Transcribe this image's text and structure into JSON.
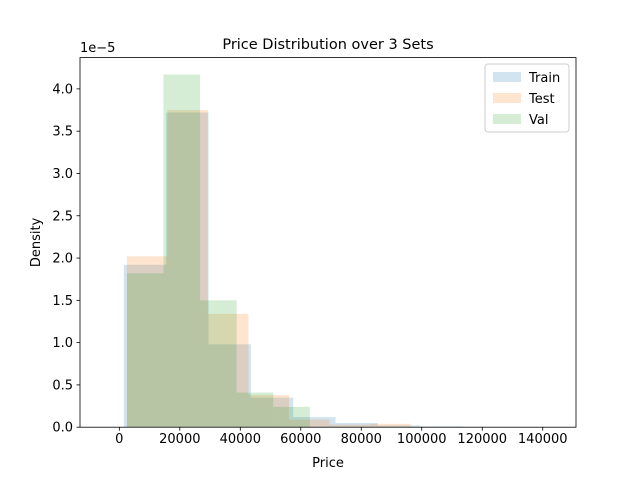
{
  "chart_data": {
    "type": "bar",
    "title": "Price Distribution over 3 Sets",
    "xlabel": "Price",
    "ylabel": "Density",
    "y_offset_label": "1e−5",
    "xlim": [
      -13000,
      151000
    ],
    "ylim": [
      0,
      4.37
    ],
    "x_ticks": [
      0,
      20000,
      40000,
      60000,
      80000,
      100000,
      120000,
      140000
    ],
    "x_tick_labels": [
      "0",
      "20000",
      "40000",
      "60000",
      "80000",
      "100000",
      "120000",
      "140000"
    ],
    "y_ticks": [
      0,
      0.5,
      1.0,
      1.5,
      2.0,
      2.5,
      3.0,
      3.5,
      4.0
    ],
    "y_tick_labels": [
      "0.0",
      "0.5",
      "1.0",
      "1.5",
      "2.0",
      "2.5",
      "3.0",
      "3.5",
      "4.0"
    ],
    "grid": false,
    "legend_position": "top-right",
    "series": [
      {
        "name": "Train",
        "color": "#1f77b4",
        "opacity": 0.2,
        "bin_edges": [
          1500,
          15500,
          29500,
          43500,
          57500,
          71500,
          85500,
          99500,
          113500,
          127500,
          141500
        ],
        "values": [
          1.92,
          3.72,
          0.98,
          0.35,
          0.12,
          0.05,
          0.02,
          0.01,
          0.005,
          0.003
        ]
      },
      {
        "name": "Test",
        "color": "#ff7f0e",
        "opacity": 0.2,
        "bin_edges": [
          2500,
          15900,
          29300,
          42700,
          56100,
          69500,
          82900,
          96300
        ],
        "values": [
          2.02,
          3.75,
          1.34,
          0.38,
          0.09,
          0.03,
          0.04
        ]
      },
      {
        "name": "Val",
        "color": "#2ca02c",
        "opacity": 0.2,
        "bin_edges": [
          2500,
          14600,
          26700,
          38800,
          50900,
          63000
        ],
        "values": [
          1.82,
          4.17,
          1.5,
          0.41,
          0.24
        ]
      }
    ]
  }
}
